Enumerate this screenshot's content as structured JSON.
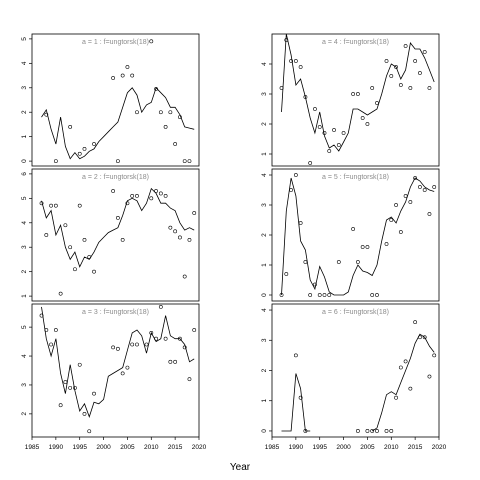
{
  "figure": {
    "xlabel": "Year",
    "background": "#ffffff",
    "axis_color": "#000000",
    "label_color": "#8c8c8c"
  },
  "chart_data": [
    {
      "type": "line+scatter",
      "title": "a = 1 : f=ungtorsk(18)",
      "xlim": [
        1985,
        2020
      ],
      "ylim": [
        -0.2,
        5.2
      ],
      "yticks": [
        0,
        1,
        2,
        3,
        4,
        5
      ],
      "xticks": [
        1985,
        1990,
        1995,
        2000,
        2005,
        2010,
        2015,
        2020
      ],
      "line": {
        "x": [
          1987,
          1988,
          1989,
          1990,
          1991,
          1992,
          1993,
          1994,
          1995,
          1996,
          1997,
          1998,
          1999,
          2000,
          2001,
          2002,
          2003,
          2004,
          2005,
          2006,
          2007,
          2008,
          2009,
          2010,
          2011,
          2012,
          2013,
          2014,
          2015,
          2016,
          2017,
          2018,
          2019
        ],
        "y": [
          1.8,
          2.1,
          1.3,
          0.7,
          1.8,
          0.6,
          0.1,
          0.35,
          0.1,
          0.2,
          0.4,
          0.5,
          0.8,
          1.0,
          1.2,
          1.4,
          1.6,
          2.2,
          2.8,
          3.0,
          2.7,
          2.0,
          2.3,
          2.4,
          3.0,
          2.8,
          2.6,
          2.2,
          2.2,
          1.9,
          1.4,
          1.35,
          1.3
        ]
      },
      "points": {
        "x": [
          1988,
          1990,
          1993,
          1995,
          1996,
          1998,
          2002,
          2003,
          2004,
          2005,
          2006,
          2007,
          2010,
          2011,
          2012,
          2013,
          2014,
          2015,
          2016,
          2017,
          2018
        ],
        "y": [
          1.9,
          0.0,
          1.4,
          0.3,
          0.5,
          0.7,
          3.4,
          0.0,
          3.5,
          3.85,
          3.5,
          2.0,
          4.9,
          2.95,
          2.0,
          1.4,
          2.0,
          0.7,
          1.8,
          0.0,
          0.0
        ]
      }
    },
    {
      "type": "line+scatter",
      "title": "a = 4 : f=ungtorsk(18)",
      "xlim": [
        1985,
        2020
      ],
      "ylim": [
        0.6,
        5.0
      ],
      "yticks": [
        1,
        2,
        3,
        4
      ],
      "xticks": [
        1985,
        1990,
        1995,
        2000,
        2005,
        2010,
        2015,
        2020
      ],
      "line": {
        "x": [
          1987,
          1988,
          1989,
          1990,
          1991,
          1992,
          1993,
          1994,
          1995,
          1996,
          1997,
          1998,
          1999,
          2000,
          2001,
          2002,
          2003,
          2004,
          2005,
          2006,
          2007,
          2008,
          2009,
          2010,
          2011,
          2012,
          2013,
          2014,
          2015,
          2016,
          2017,
          2018,
          2019
        ],
        "y": [
          2.4,
          5.0,
          4.3,
          3.3,
          3.5,
          2.9,
          2.2,
          1.7,
          2.4,
          1.6,
          1.2,
          1.3,
          1.1,
          1.4,
          1.7,
          2.5,
          2.5,
          2.4,
          2.3,
          2.4,
          2.5,
          3.0,
          3.6,
          4.0,
          3.9,
          3.5,
          3.8,
          4.7,
          4.5,
          4.5,
          4.2,
          3.8,
          3.4
        ]
      },
      "points": {
        "x": [
          1987,
          1988,
          1989,
          1990,
          1991,
          1992,
          1993,
          1994,
          1995,
          1996,
          1997,
          1998,
          1999,
          2000,
          2002,
          2003,
          2004,
          2005,
          2006,
          2007,
          2009,
          2010,
          2011,
          2012,
          2013,
          2014,
          2015,
          2016,
          2017,
          2018
        ],
        "y": [
          3.2,
          4.8,
          4.1,
          4.1,
          3.9,
          2.9,
          0.7,
          2.5,
          1.9,
          1.7,
          1.1,
          1.8,
          1.3,
          1.7,
          3.0,
          3.0,
          2.2,
          2.0,
          3.2,
          2.7,
          4.1,
          3.6,
          3.9,
          3.3,
          4.6,
          3.2,
          4.1,
          3.7,
          4.4,
          3.2
        ]
      }
    },
    {
      "type": "line+scatter",
      "title": "a = 2 : f=ungtorsk(18)",
      "xlim": [
        1985,
        2020
      ],
      "ylim": [
        0.8,
        6.2
      ],
      "yticks": [
        1,
        2,
        3,
        4,
        5,
        6
      ],
      "xticks": [
        1985,
        1990,
        1995,
        2000,
        2005,
        2010,
        2015,
        2020
      ],
      "line": {
        "x": [
          1987,
          1988,
          1989,
          1990,
          1991,
          1992,
          1993,
          1994,
          1995,
          1996,
          1997,
          1998,
          1999,
          2000,
          2001,
          2002,
          2003,
          2004,
          2005,
          2006,
          2007,
          2008,
          2009,
          2010,
          2011,
          2012,
          2013,
          2014,
          2015,
          2016,
          2017,
          2018,
          2019
        ],
        "y": [
          4.9,
          4.2,
          4.5,
          3.5,
          3.9,
          3.0,
          2.5,
          2.8,
          2.2,
          2.6,
          2.5,
          2.8,
          3.2,
          3.4,
          3.6,
          3.7,
          3.8,
          4.3,
          4.9,
          5.0,
          4.9,
          4.5,
          4.8,
          5.4,
          5.2,
          4.8,
          4.8,
          4.6,
          4.5,
          4.0,
          3.7,
          3.8,
          3.7
        ]
      },
      "points": {
        "x": [
          1987,
          1988,
          1989,
          1990,
          1991,
          1992,
          1993,
          1994,
          1995,
          1996,
          1997,
          1998,
          2002,
          2003,
          2004,
          2005,
          2006,
          2007,
          2010,
          2011,
          2012,
          2013,
          2014,
          2015,
          2016,
          2017,
          2018,
          2019
        ],
        "y": [
          4.8,
          3.5,
          4.7,
          4.7,
          1.1,
          3.9,
          3.0,
          2.1,
          4.7,
          3.3,
          2.6,
          2.0,
          5.3,
          4.2,
          3.3,
          4.8,
          5.1,
          5.1,
          5.0,
          5.3,
          5.2,
          5.1,
          3.8,
          3.65,
          3.4,
          1.8,
          3.3,
          4.4
        ]
      }
    },
    {
      "type": "line+scatter",
      "title": "a = 5 : f=ungtorsk(18)",
      "xlim": [
        1985,
        2020
      ],
      "ylim": [
        -0.2,
        4.2
      ],
      "yticks": [
        0,
        1,
        2,
        3,
        4
      ],
      "xticks": [
        1985,
        1990,
        1995,
        2000,
        2005,
        2010,
        2015,
        2020
      ],
      "line": {
        "x": [
          1987,
          1988,
          1989,
          1990,
          1991,
          1992,
          1993,
          1994,
          1995,
          1996,
          1997,
          1998,
          1999,
          2000,
          2001,
          2002,
          2003,
          2004,
          2005,
          2006,
          2007,
          2008,
          2009,
          2010,
          2011,
          2012,
          2013,
          2014,
          2015,
          2016,
          2017,
          2018,
          2019
        ],
        "y": [
          0.0,
          2.8,
          3.9,
          3.3,
          1.8,
          1.5,
          0.5,
          0.2,
          0.95,
          0.6,
          0.1,
          0.0,
          0.0,
          0.0,
          0.1,
          0.65,
          1.0,
          0.8,
          0.75,
          0.65,
          1.0,
          1.8,
          2.5,
          2.6,
          2.4,
          2.8,
          3.1,
          3.6,
          3.9,
          3.8,
          3.6,
          3.5,
          3.45
        ]
      },
      "points": {
        "x": [
          1987,
          1988,
          1989,
          1990,
          1991,
          1992,
          1993,
          1994,
          1995,
          1996,
          1997,
          1999,
          2002,
          2003,
          2004,
          2005,
          2006,
          2007,
          2009,
          2010,
          2011,
          2012,
          2013,
          2014,
          2015,
          2016,
          2017,
          2018,
          2019
        ],
        "y": [
          0.0,
          0.7,
          3.5,
          4.0,
          2.4,
          1.1,
          0.0,
          0.35,
          0.0,
          0.0,
          0.0,
          1.1,
          2.2,
          1.1,
          1.6,
          1.6,
          0.0,
          0.0,
          1.7,
          2.5,
          3.0,
          2.1,
          3.3,
          3.1,
          3.9,
          3.6,
          3.5,
          2.7,
          3.6
        ]
      }
    },
    {
      "type": "line+scatter",
      "title": "a = 3 : f=ungtorsk(18)",
      "xlim": [
        1985,
        2020
      ],
      "ylim": [
        1.2,
        5.8
      ],
      "yticks": [
        2,
        3,
        4,
        5
      ],
      "xticks": [
        1985,
        1990,
        1995,
        2000,
        2005,
        2010,
        2015,
        2020
      ],
      "line": {
        "x": [
          1987,
          1988,
          1989,
          1990,
          1991,
          1992,
          1993,
          1994,
          1995,
          1996,
          1997,
          1998,
          1999,
          2000,
          2001,
          2002,
          2003,
          2004,
          2005,
          2006,
          2007,
          2008,
          2009,
          2010,
          2011,
          2012,
          2013,
          2014,
          2015,
          2016,
          2017,
          2018,
          2019
        ],
        "y": [
          5.7,
          4.6,
          4.0,
          4.6,
          3.4,
          2.7,
          3.7,
          2.8,
          2.1,
          2.35,
          1.9,
          2.4,
          2.35,
          2.5,
          3.3,
          3.4,
          3.5,
          3.6,
          4.2,
          4.8,
          4.9,
          4.7,
          4.1,
          4.8,
          4.5,
          4.6,
          5.4,
          4.7,
          4.6,
          4.6,
          4.4,
          3.8,
          3.9
        ]
      },
      "points": {
        "x": [
          1987,
          1988,
          1989,
          1990,
          1991,
          1992,
          1993,
          1994,
          1995,
          1996,
          1997,
          1998,
          2002,
          2003,
          2004,
          2005,
          2006,
          2007,
          2009,
          2010,
          2011,
          2012,
          2013,
          2014,
          2015,
          2016,
          2017,
          2018,
          2019
        ],
        "y": [
          5.4,
          4.9,
          4.4,
          4.9,
          2.3,
          3.1,
          2.9,
          2.9,
          3.7,
          2.0,
          1.4,
          2.7,
          4.3,
          4.25,
          3.4,
          3.6,
          4.4,
          4.4,
          4.4,
          4.8,
          4.6,
          5.7,
          4.6,
          3.8,
          3.8,
          4.6,
          4.3,
          3.2,
          4.9
        ]
      }
    },
    {
      "type": "line+scatter",
      "title": "a = 6 : f=ungtorsk(18)",
      "xlim": [
        1985,
        2020
      ],
      "ylim": [
        -0.2,
        4.2
      ],
      "yticks": [
        0,
        1,
        2,
        3,
        4
      ],
      "xticks": [
        1985,
        1990,
        1995,
        2000,
        2005,
        2010,
        2015,
        2020
      ],
      "line": {
        "x": [
          1987,
          1988,
          1989,
          1990,
          1991,
          1992,
          1993,
          null,
          2006,
          2007,
          2008,
          2009,
          2010,
          2011,
          2012,
          2013,
          2014,
          2015,
          2016,
          2017,
          2018,
          2019
        ],
        "y": [
          0.0,
          0.0,
          0.0,
          1.9,
          1.4,
          0.0,
          0.0,
          null,
          0.0,
          0.1,
          0.6,
          1.2,
          1.3,
          1.2,
          1.6,
          2.0,
          2.4,
          2.9,
          3.2,
          3.1,
          2.8,
          2.6
        ]
      },
      "points": {
        "x": [
          1990,
          1991,
          1992,
          2003,
          2005,
          2006,
          2007,
          2009,
          2010,
          2011,
          2012,
          2013,
          2014,
          2015,
          2016,
          2017,
          2018,
          2019
        ],
        "y": [
          2.5,
          1.1,
          0.0,
          0.0,
          0.0,
          0.0,
          0.0,
          0.0,
          0.0,
          1.1,
          2.1,
          2.3,
          1.4,
          3.6,
          3.1,
          3.1,
          1.8,
          2.5
        ]
      }
    }
  ]
}
